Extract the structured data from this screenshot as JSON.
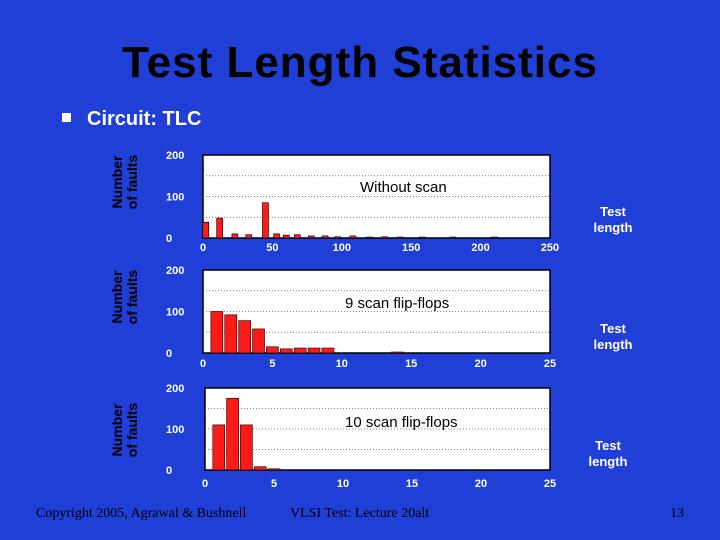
{
  "slide": {
    "title": "Test Length Statistics",
    "bullet": "Circuit: TLC",
    "footer_left": "Copyright 2005, Agrawal & Bushnell",
    "footer_center": "VLSI Test: Lecture 20alt",
    "page_number": "13"
  },
  "colors": {
    "background": "#1f3fd6",
    "bar": "#ff1a1a",
    "plot_bg": "#ffffff",
    "title": "#000000"
  },
  "chart_data": [
    {
      "type": "bar",
      "title": "Without scan",
      "ylabel": "Number of faults",
      "xlabel": "Test length",
      "xlim": [
        0,
        250
      ],
      "ylim": [
        0,
        200
      ],
      "y_ticks": [
        "200",
        "100",
        "0"
      ],
      "x_ticks": [
        "0",
        "50",
        "100",
        "150",
        "200",
        "250"
      ],
      "x": [
        2,
        12,
        23,
        33,
        45,
        53,
        60,
        68,
        78,
        88,
        97,
        108,
        120,
        131,
        142,
        158,
        180,
        210
      ],
      "values": [
        38,
        48,
        10,
        8,
        85,
        10,
        7,
        8,
        5,
        5,
        3,
        5,
        2,
        3,
        2,
        1,
        1,
        1
      ]
    },
    {
      "type": "bar",
      "title": "9 scan flip-flops",
      "ylabel": "Number of faults",
      "xlabel": "Test length",
      "xlim": [
        0,
        25
      ],
      "ylim": [
        0,
        200
      ],
      "y_ticks": [
        "200",
        "100",
        "0"
      ],
      "x_ticks": [
        "0",
        "5",
        "10",
        "15",
        "20",
        "25"
      ],
      "x": [
        1,
        2,
        3,
        4,
        5,
        6,
        7,
        8,
        9,
        14
      ],
      "values": [
        100,
        92,
        78,
        58,
        15,
        10,
        12,
        12,
        12,
        2
      ]
    },
    {
      "type": "bar",
      "title": "10 scan flip-flops",
      "ylabel": "Number of faults",
      "xlabel": "Test length",
      "xlim": [
        0,
        25
      ],
      "ylim": [
        0,
        200
      ],
      "y_ticks": [
        "200",
        "100",
        "0"
      ],
      "x_ticks": [
        "0",
        "5",
        "10",
        "15",
        "20",
        "25"
      ],
      "x": [
        1,
        2,
        3,
        4,
        5
      ],
      "values": [
        110,
        175,
        110,
        8,
        3
      ]
    }
  ]
}
